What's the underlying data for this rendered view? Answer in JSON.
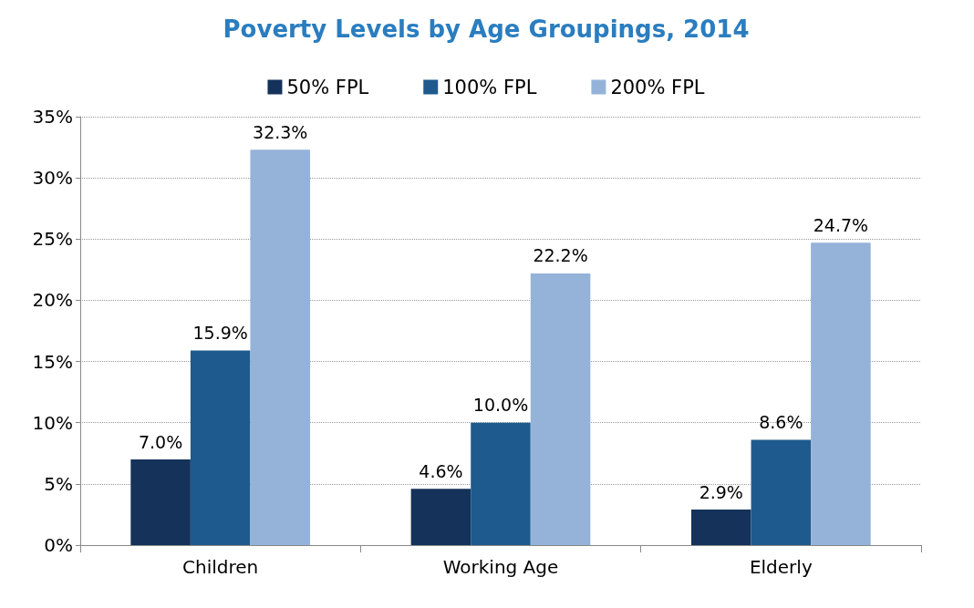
{
  "chart_data": {
    "type": "bar",
    "title": "Poverty Levels by Age Groupings, 2014",
    "categories": [
      "Children",
      "Working Age",
      "Elderly"
    ],
    "series": [
      {
        "name": "50% FPL",
        "color": "#14325a",
        "values": [
          7.0,
          4.6,
          2.9
        ],
        "value_labels": [
          "7.0%",
          "4.6%",
          "2.9%"
        ]
      },
      {
        "name": "100% FPL",
        "color": "#1f5a8e",
        "values": [
          15.9,
          10.0,
          8.6
        ],
        "value_labels": [
          "15.9%",
          "10.0%",
          "8.6%"
        ]
      },
      {
        "name": "200% FPL",
        "color": "#95b3d9",
        "values": [
          32.3,
          22.2,
          24.7
        ],
        "value_labels": [
          "32.3%",
          "22.2%",
          "24.7%"
        ]
      }
    ],
    "ylim": [
      0,
      35
    ],
    "yticks": [
      {
        "value": 0,
        "label": "0%"
      },
      {
        "value": 5,
        "label": "5%"
      },
      {
        "value": 10,
        "label": "10%"
      },
      {
        "value": 15,
        "label": "15%"
      },
      {
        "value": 20,
        "label": "20%"
      },
      {
        "value": 25,
        "label": "25%"
      },
      {
        "value": 30,
        "label": "30%"
      },
      {
        "value": 35,
        "label": "35%"
      }
    ],
    "grid": "y",
    "legend": "top"
  }
}
